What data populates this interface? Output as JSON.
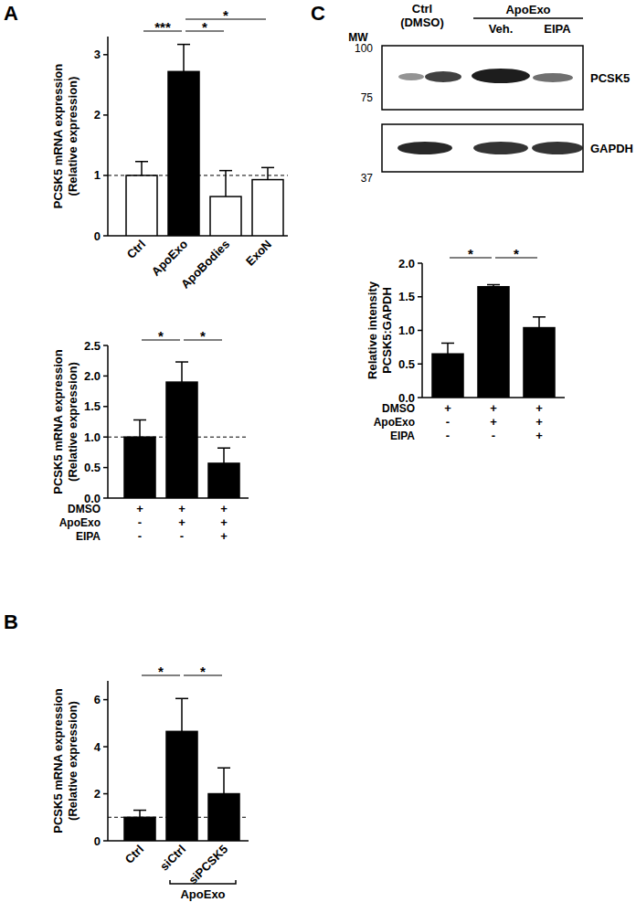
{
  "chart_data": [
    {
      "type": "bar",
      "panel": "A",
      "y_label": [
        "PCSK5 mRNA expression",
        "(Relative expression)"
      ],
      "categories": [
        "Ctrl",
        "ApoExo",
        "ApoBodies",
        "ExoN"
      ],
      "values": [
        1.0,
        2.72,
        0.65,
        0.93
      ],
      "errors": [
        0.23,
        0.45,
        0.43,
        0.2
      ],
      "colors": [
        "#ffffff",
        "#000000",
        "#ffffff",
        "#ffffff"
      ],
      "ylim": [
        0,
        3.3
      ],
      "yticks": [
        0,
        1,
        2,
        3
      ],
      "reference_value": 1,
      "comparisons": [
        {
          "label": "***",
          "between": [
            0,
            1
          ]
        },
        {
          "label": "*",
          "between": [
            1,
            2
          ]
        },
        {
          "label": "*",
          "between": [
            1,
            3
          ]
        }
      ]
    },
    {
      "type": "bar",
      "y_label": [
        "PCSK5 mRNA expression",
        "(Relative expression)"
      ],
      "categories": [
        null,
        null,
        null
      ],
      "values": [
        1.0,
        1.9,
        0.57
      ],
      "errors": [
        0.28,
        0.33,
        0.25
      ],
      "color": "#000000",
      "ylim": [
        0,
        2.5
      ],
      "yticks": [
        {
          "value": 0,
          "label": "0.0"
        },
        {
          "value": 0.5,
          "label": "0.5"
        },
        {
          "value": 1,
          "label": "1.0"
        },
        {
          "value": 1.5,
          "label": "1.5"
        },
        {
          "value": 2,
          "label": "2.0"
        },
        {
          "value": 2.5,
          "label": "2.5"
        }
      ],
      "reference_value": 1,
      "treatments": [
        {
          "name": "DMSO",
          "signs": [
            "+",
            "+",
            "+"
          ]
        },
        {
          "name": "ApoExo",
          "signs": [
            "-",
            "+",
            "+"
          ]
        },
        {
          "name": "EIPA",
          "signs": [
            "-",
            "-",
            "+"
          ]
        }
      ],
      "comparisons": [
        {
          "label": "*",
          "between": [
            0,
            1
          ]
        },
        {
          "label": "*",
          "between": [
            1,
            2
          ]
        }
      ]
    },
    {
      "type": "bar",
      "panel": "B",
      "y_label": [
        "PCSK5 mRNA expression",
        "(Relative expression)"
      ],
      "categories": [
        "Ctrl",
        "siCtrl",
        "siPCSK5"
      ],
      "values": [
        1.0,
        4.65,
        2.0
      ],
      "errors": [
        0.3,
        1.4,
        1.1
      ],
      "color": "#000000",
      "ylim": [
        0,
        6.8
      ],
      "yticks": [
        0,
        2,
        4,
        6
      ],
      "reference_value": 1,
      "groups": [
        {
          "label": "ApoExo",
          "between": [
            1,
            2
          ]
        }
      ],
      "comparisons": [
        {
          "label": "*",
          "between": [
            0,
            1
          ]
        },
        {
          "label": "*",
          "between": [
            1,
            2
          ]
        }
      ]
    },
    {
      "type": "bar",
      "y_label": [
        "Relative intensity",
        "PCSK5:GAPDH"
      ],
      "categories": [
        null,
        null,
        null
      ],
      "values": [
        0.65,
        1.65,
        1.04
      ],
      "errors": [
        0.16,
        0.03,
        0.16
      ],
      "color": "#000000",
      "ylim": [
        0,
        2.0
      ],
      "yticks": [
        {
          "value": 0,
          "label": "0.0"
        },
        {
          "value": 0.5,
          "label": "0.5"
        },
        {
          "value": 1,
          "label": "1.0"
        },
        {
          "value": 1.5,
          "label": "1.5"
        },
        {
          "value": 2,
          "label": "2.0"
        }
      ],
      "treatments": [
        {
          "name": "DMSO",
          "signs": [
            "+",
            "+",
            "+"
          ]
        },
        {
          "name": "ApoExo",
          "signs": [
            "-",
            "+",
            "+"
          ]
        },
        {
          "name": "EIPA",
          "signs": [
            "-",
            "-",
            "+"
          ]
        }
      ],
      "comparisons": [
        {
          "label": "*",
          "between": [
            0,
            1
          ]
        },
        {
          "label": "*",
          "between": [
            1,
            2
          ]
        }
      ]
    }
  ],
  "blot": {
    "panel": "C",
    "mw_label": "MW",
    "mw_markers": [
      100,
      75,
      37
    ],
    "lanes": [
      [
        "Ctrl",
        "(DMSO)"
      ],
      [
        "Veh."
      ],
      [
        "EIPA"
      ]
    ],
    "lane_group": {
      "label": "ApoExo",
      "between": [
        1,
        2
      ]
    },
    "bands": [
      "PCSK5",
      "GAPDH"
    ]
  }
}
